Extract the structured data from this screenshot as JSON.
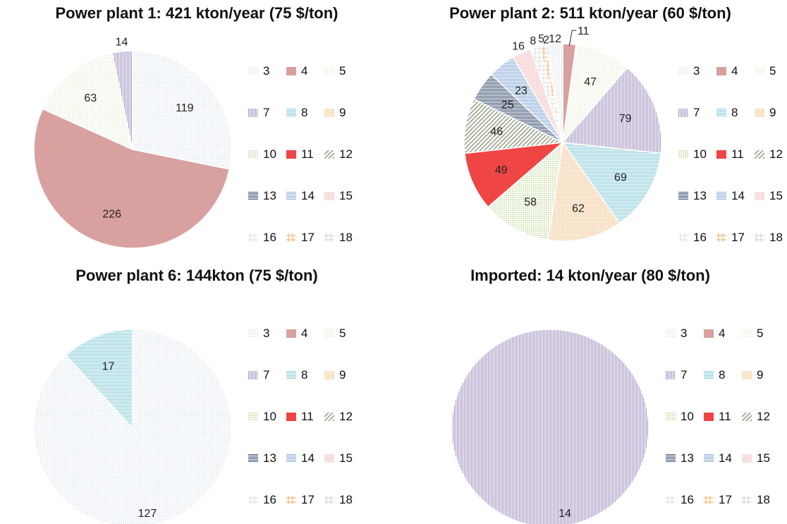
{
  "pattern_colors": {
    "3": "#c6d2df",
    "4": "#d9a0a0",
    "5": "#d7e4b5",
    "7": "#a898c4",
    "8": "#8fcfdc",
    "9": "#f6d0a8",
    "10": "#b9d28c",
    "11": "#f04545",
    "12": "#9aa48a",
    "13": "#44567a",
    "14": "#8fb0d8",
    "15": "#f3c8c8",
    "16": "#dcdcdc",
    "17": "#f5a860",
    "18": "#cfcfcf"
  },
  "chart_data": [
    {
      "type": "pie",
      "title": "Power plant 1: 421 kton/year (75 $/ton)",
      "slices": [
        {
          "category": "3",
          "value": 119,
          "label": "119"
        },
        {
          "category": "4",
          "value": 226,
          "label": "226"
        },
        {
          "category": "5",
          "value": 63,
          "label": "63"
        },
        {
          "category": "7",
          "value": 14,
          "label": "14"
        }
      ],
      "legend": [
        "3",
        "4",
        "5",
        "7",
        "8",
        "9",
        "10",
        "11",
        "12",
        "13",
        "14",
        "15",
        "16",
        "17",
        "18"
      ],
      "legend_position": "right"
    },
    {
      "type": "pie",
      "title": "Power plant 2:  511 kton/year (60 $/ton)",
      "slices": [
        {
          "category": "4",
          "value": 11,
          "label": "11"
        },
        {
          "category": "5",
          "value": 47,
          "label": "47"
        },
        {
          "category": "7",
          "value": 79,
          "label": "79"
        },
        {
          "category": "8",
          "value": 69,
          "label": "69"
        },
        {
          "category": "9",
          "value": 62,
          "label": "62"
        },
        {
          "category": "10",
          "value": 58,
          "label": "58"
        },
        {
          "category": "11",
          "value": 49,
          "label": "49"
        },
        {
          "category": "12",
          "value": 46,
          "label": "46"
        },
        {
          "category": "13",
          "value": 25,
          "label": "25"
        },
        {
          "category": "14",
          "value": 23,
          "label": "23"
        },
        {
          "category": "15",
          "value": 16,
          "label": "16"
        },
        {
          "category": "16",
          "value": 8,
          "label": "8"
        },
        {
          "category": "17",
          "value": 5,
          "label": "5"
        },
        {
          "category": "18",
          "value": 2,
          "label": "2"
        },
        {
          "category": "3",
          "value": 12,
          "label": "12"
        }
      ],
      "legend": [
        "3",
        "4",
        "5",
        "7",
        "8",
        "9",
        "10",
        "11",
        "12",
        "13",
        "14",
        "15",
        "16",
        "17",
        "18"
      ],
      "legend_position": "right"
    },
    {
      "type": "pie",
      "title": "Power plant 6: 144kton (75 $/ton)",
      "slices": [
        {
          "category": "3",
          "value": 127,
          "label": "127"
        },
        {
          "category": "8",
          "value": 17,
          "label": "17"
        }
      ],
      "legend": [
        "3",
        "4",
        "5",
        "7",
        "8",
        "9",
        "10",
        "11",
        "12",
        "13",
        "14",
        "15",
        "16",
        "17",
        "18"
      ],
      "legend_position": "right"
    },
    {
      "type": "pie",
      "title": "Imported: 14 kton/year (80 $/ton)",
      "slices": [
        {
          "category": "7",
          "value": 14,
          "label": "14"
        }
      ],
      "legend": [
        "3",
        "4",
        "5",
        "7",
        "8",
        "9",
        "10",
        "11",
        "12",
        "13",
        "14",
        "15",
        "16",
        "17",
        "18"
      ],
      "legend_position": "right"
    }
  ]
}
